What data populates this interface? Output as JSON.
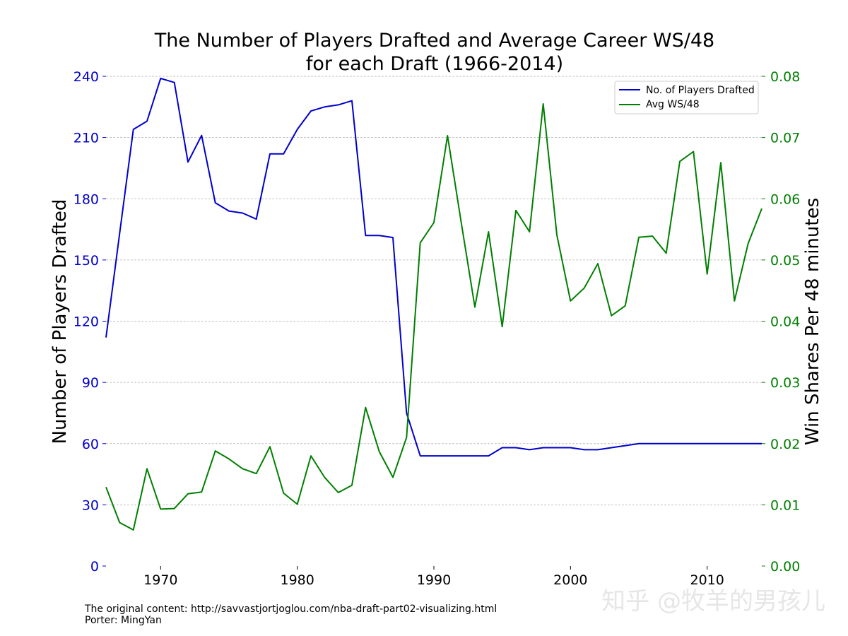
{
  "chart_data": {
    "type": "line",
    "title_line1": "The Number of Players Drafted and Average Career WS/48",
    "title_line2": "for each Draft (1966-2014)",
    "ylabel_left": "Number of Players Drafted",
    "ylabel_right": "Win Shares Per 48 minutes",
    "xlim": [
      1966,
      2014
    ],
    "ylim_left": [
      0,
      240
    ],
    "ylim_right": [
      0,
      0.08
    ],
    "x_ticks": [
      "1970",
      "1980",
      "1990",
      "2000",
      "2010"
    ],
    "y_left_ticks": [
      "0",
      "30",
      "60",
      "90",
      "120",
      "150",
      "180",
      "210",
      "240"
    ],
    "y_right_ticks": [
      "0.00",
      "0.01",
      "0.02",
      "0.03",
      "0.04",
      "0.05",
      "0.06",
      "0.07",
      "0.08"
    ],
    "grid": true,
    "legend": "top-right",
    "x": [
      1966,
      1967,
      1968,
      1969,
      1970,
      1971,
      1972,
      1973,
      1974,
      1975,
      1976,
      1977,
      1978,
      1979,
      1980,
      1981,
      1982,
      1983,
      1984,
      1985,
      1986,
      1987,
      1988,
      1989,
      1990,
      1991,
      1992,
      1993,
      1994,
      1995,
      1996,
      1997,
      1998,
      1999,
      2000,
      2001,
      2002,
      2003,
      2004,
      2005,
      2006,
      2007,
      2008,
      2009,
      2010,
      2011,
      2012,
      2013,
      2014
    ],
    "series": [
      {
        "name": "No. of Players Drafted",
        "axis": "left",
        "color": "#0000cc",
        "values": [
          112,
          163,
          214,
          218,
          239,
          237,
          198,
          211,
          178,
          174,
          173,
          170,
          202,
          202,
          214,
          223,
          225,
          226,
          228,
          162,
          162,
          161,
          75,
          54,
          54,
          54,
          54,
          54,
          54,
          58,
          58,
          57,
          58,
          58,
          58,
          57,
          57,
          58,
          59,
          60,
          60,
          60,
          60,
          60,
          60,
          60,
          60,
          60,
          60
        ]
      },
      {
        "name": "Avg WS/48",
        "axis": "right",
        "color": "#007f00",
        "values": [
          0.0129,
          0.0071,
          0.0059,
          0.0159,
          0.0093,
          0.0094,
          0.0118,
          0.0121,
          0.0188,
          0.0175,
          0.0159,
          0.0151,
          0.0195,
          0.0119,
          0.0101,
          0.018,
          0.0145,
          0.012,
          0.0132,
          0.0259,
          0.0187,
          0.0145,
          0.021,
          0.0528,
          0.0561,
          0.0703,
          0.0561,
          0.0423,
          0.0546,
          0.0391,
          0.0581,
          0.0546,
          0.0755,
          0.0541,
          0.0433,
          0.0454,
          0.0494,
          0.0409,
          0.0425,
          0.0537,
          0.0539,
          0.0511,
          0.0661,
          0.0677,
          0.0477,
          0.0659,
          0.0433,
          0.0527,
          0.0584
        ]
      }
    ]
  },
  "footer": {
    "line1": "The original content: http://savvastjortjoglou.com/nba-draft-part02-visualizing.html",
    "line2": "Porter: MingYan"
  },
  "watermark": "知乎 @牧羊的男孩儿"
}
